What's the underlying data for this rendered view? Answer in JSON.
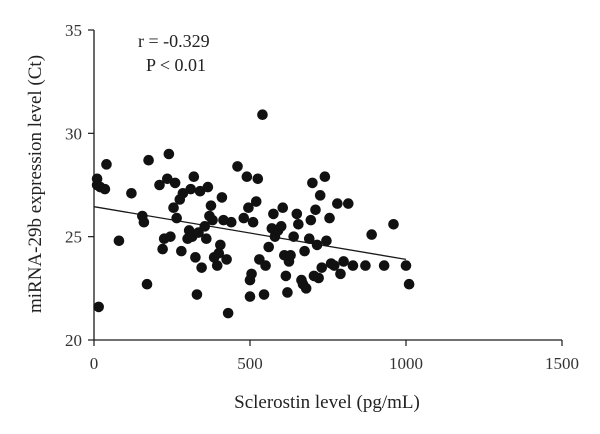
{
  "chart_data": {
    "type": "scatter",
    "xlabel": "Sclerostin level (pg/mL)",
    "ylabel": "miRNA-29b expression level (Ct)",
    "xlim": [
      0,
      1500
    ],
    "ylim": [
      20,
      35
    ],
    "xticks": [
      0,
      500,
      1000,
      1500
    ],
    "yticks": [
      20,
      25,
      30,
      35
    ],
    "xtick_labels": [
      "0",
      "500",
      "1000",
      "1500"
    ],
    "ytick_labels": [
      "20",
      "25",
      "30",
      "35"
    ],
    "grid": false,
    "point_color": "#111111",
    "annotations": [
      "r = -0.329",
      "P < 0.01"
    ],
    "trendline": {
      "x": [
        0,
        1000
      ],
      "y": [
        26.45,
        23.9
      ]
    },
    "points": [
      [
        10,
        27.8
      ],
      [
        10,
        27.5
      ],
      [
        20,
        27.4
      ],
      [
        35,
        27.3
      ],
      [
        40,
        28.5
      ],
      [
        15,
        21.6
      ],
      [
        80,
        24.8
      ],
      [
        120,
        27.1
      ],
      [
        155,
        26.0
      ],
      [
        160,
        25.7
      ],
      [
        170,
        22.7
      ],
      [
        175,
        28.7
      ],
      [
        210,
        27.5
      ],
      [
        220,
        24.4
      ],
      [
        225,
        24.9
      ],
      [
        235,
        27.8
      ],
      [
        240,
        29.0
      ],
      [
        245,
        25.0
      ],
      [
        255,
        26.4
      ],
      [
        260,
        27.6
      ],
      [
        265,
        25.9
      ],
      [
        275,
        26.8
      ],
      [
        280,
        24.3
      ],
      [
        285,
        27.1
      ],
      [
        300,
        24.9
      ],
      [
        305,
        25.3
      ],
      [
        310,
        27.3
      ],
      [
        315,
        25.0
      ],
      [
        320,
        27.9
      ],
      [
        325,
        24.0
      ],
      [
        330,
        22.2
      ],
      [
        335,
        25.2
      ],
      [
        340,
        27.2
      ],
      [
        345,
        23.5
      ],
      [
        355,
        25.5
      ],
      [
        360,
        24.9
      ],
      [
        365,
        27.4
      ],
      [
        370,
        26.0
      ],
      [
        375,
        26.5
      ],
      [
        380,
        25.8
      ],
      [
        385,
        24.0
      ],
      [
        395,
        23.6
      ],
      [
        400,
        24.2
      ],
      [
        405,
        24.6
      ],
      [
        410,
        26.9
      ],
      [
        415,
        25.8
      ],
      [
        425,
        23.9
      ],
      [
        430,
        21.3
      ],
      [
        440,
        25.7
      ],
      [
        460,
        28.4
      ],
      [
        480,
        25.9
      ],
      [
        490,
        27.9
      ],
      [
        495,
        26.4
      ],
      [
        500,
        22.9
      ],
      [
        500,
        22.1
      ],
      [
        505,
        23.2
      ],
      [
        510,
        25.7
      ],
      [
        520,
        26.7
      ],
      [
        525,
        27.8
      ],
      [
        530,
        23.9
      ],
      [
        540,
        30.9
      ],
      [
        545,
        22.2
      ],
      [
        550,
        23.6
      ],
      [
        560,
        24.5
      ],
      [
        570,
        25.4
      ],
      [
        575,
        26.1
      ],
      [
        580,
        25.0
      ],
      [
        590,
        25.3
      ],
      [
        600,
        25.5
      ],
      [
        605,
        26.4
      ],
      [
        610,
        24.1
      ],
      [
        615,
        23.1
      ],
      [
        620,
        22.3
      ],
      [
        625,
        23.8
      ],
      [
        630,
        24.1
      ],
      [
        640,
        25.0
      ],
      [
        650,
        26.1
      ],
      [
        655,
        25.6
      ],
      [
        665,
        22.9
      ],
      [
        670,
        22.7
      ],
      [
        675,
        24.3
      ],
      [
        680,
        22.5
      ],
      [
        690,
        24.9
      ],
      [
        695,
        25.8
      ],
      [
        700,
        27.6
      ],
      [
        705,
        23.1
      ],
      [
        710,
        26.3
      ],
      [
        715,
        24.6
      ],
      [
        720,
        23.0
      ],
      [
        725,
        27.0
      ],
      [
        730,
        23.5
      ],
      [
        740,
        27.9
      ],
      [
        745,
        24.8
      ],
      [
        755,
        25.9
      ],
      [
        760,
        23.7
      ],
      [
        770,
        23.6
      ],
      [
        780,
        26.6
      ],
      [
        790,
        23.2
      ],
      [
        800,
        23.8
      ],
      [
        815,
        26.6
      ],
      [
        830,
        23.6
      ],
      [
        870,
        23.6
      ],
      [
        890,
        25.1
      ],
      [
        930,
        23.6
      ],
      [
        960,
        25.6
      ],
      [
        1000,
        23.6
      ],
      [
        1010,
        22.7
      ]
    ]
  }
}
